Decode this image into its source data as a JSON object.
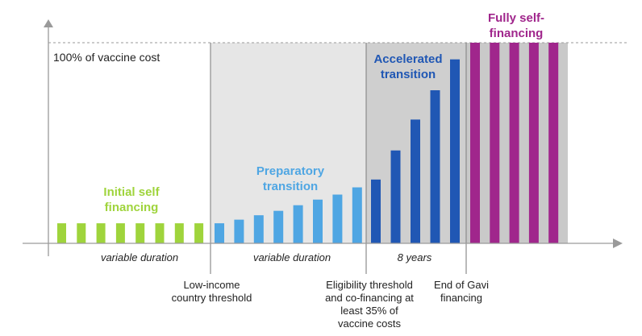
{
  "diagram": {
    "reference_line_label": "100% of vaccine cost",
    "phases": [
      {
        "id": "initial",
        "label": "Initial self financing",
        "color": "#9fd43c"
      },
      {
        "id": "preparatory",
        "label": "Preparatory transition",
        "color": "#4fa6e3"
      },
      {
        "id": "accelerated",
        "label": "Accelerated transition",
        "color": "#2057b4"
      },
      {
        "id": "fully",
        "label": "Fully self-financing",
        "color": "#a0268c"
      }
    ],
    "durations": [
      "variable duration",
      "variable duration",
      "8 years"
    ],
    "milestones": [
      "Low-income country threshold",
      "Eligibility threshold and co-financing at least 35% of vaccine costs",
      "End of Gavi financing"
    ],
    "bar_levels": {
      "initial": [
        0.1,
        0.1,
        0.1,
        0.1,
        0.1,
        0.1,
        0.1,
        0.1
      ],
      "preparatory": [
        0.1,
        0.118,
        0.14,
        0.162,
        0.19,
        0.218,
        0.243,
        0.279
      ],
      "accelerated": [
        0.318,
        0.463,
        0.617,
        0.763,
        0.917
      ],
      "fully": [
        1,
        1,
        1,
        1,
        1
      ]
    }
  }
}
